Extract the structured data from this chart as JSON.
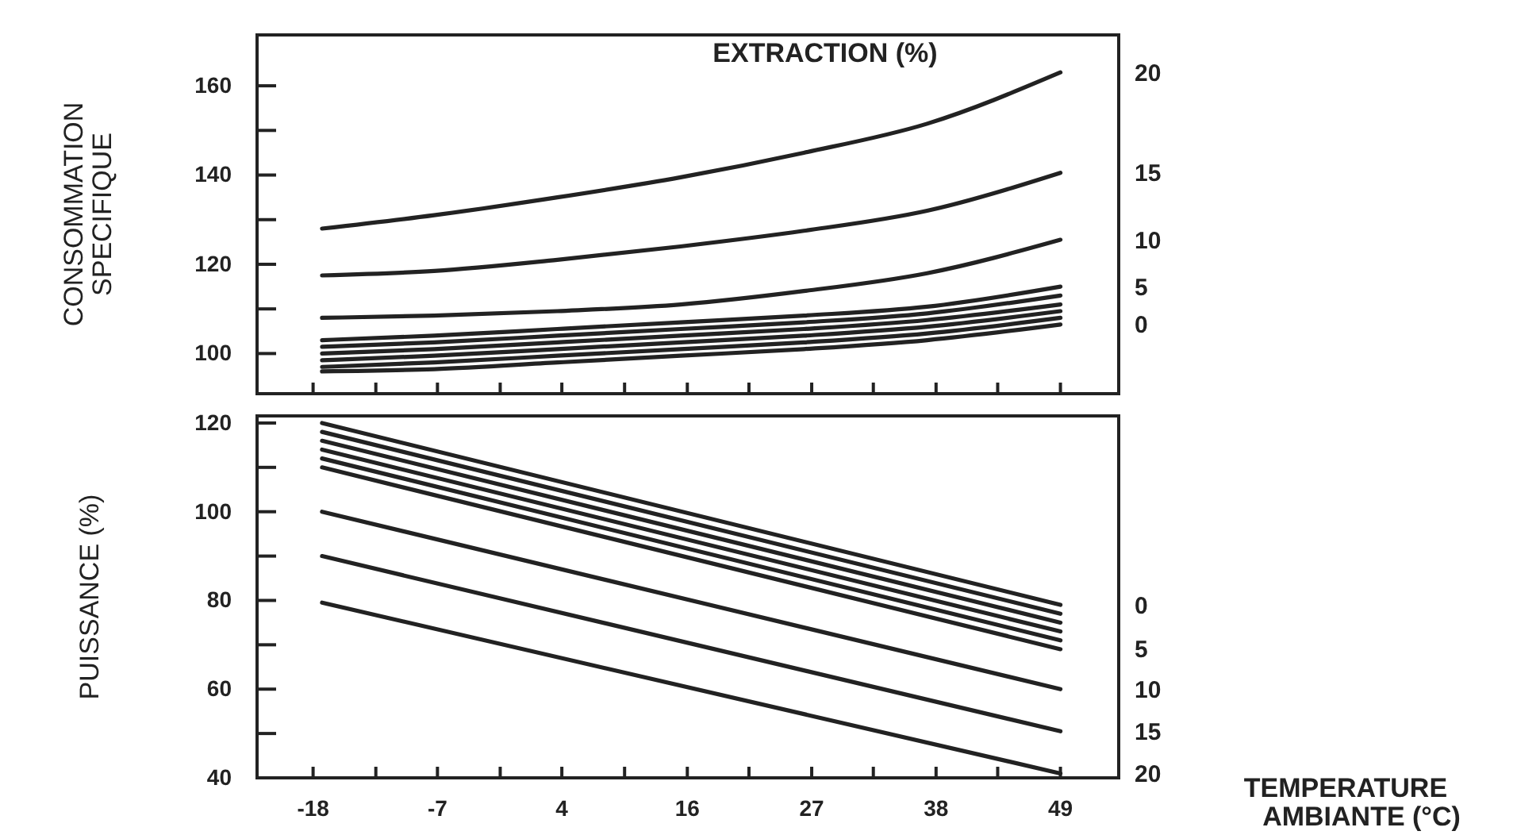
{
  "chart_data": [
    {
      "type": "line",
      "ylabel": "CONSOMMATION SPECIFIQUE",
      "annotations": [
        "EXTRACTION (%)"
      ],
      "xlim": [
        -22.8,
        54.1
      ],
      "ylim": [
        91,
        171.4
      ],
      "xticks": [
        {
          "value": -17.8,
          "label": null
        },
        {
          "value": -12.2,
          "label": null
        },
        {
          "value": -6.7,
          "label": null
        },
        {
          "value": -1.1,
          "label": null
        },
        {
          "value": 4.4,
          "label": null
        },
        {
          "value": 10,
          "label": null
        },
        {
          "value": 15.6,
          "label": null
        },
        {
          "value": 21.1,
          "label": null
        },
        {
          "value": 26.7,
          "label": null
        },
        {
          "value": 32.2,
          "label": null
        },
        {
          "value": 37.8,
          "label": null
        },
        {
          "value": 43.3,
          "label": null
        },
        {
          "value": 48.9,
          "label": null
        }
      ],
      "yticks": [
        100,
        {
          "value": 110,
          "label": null
        },
        120,
        {
          "value": 130,
          "label": null
        },
        140,
        {
          "value": 150,
          "label": null
        },
        160
      ],
      "tick_labels": "y",
      "grid": false,
      "marker": "none",
      "line_style": "solid",
      "x": [
        -17,
        -7,
        4,
        15,
        26,
        37,
        48.9
      ],
      "series": [
        {
          "name": "20",
          "color": "#222222",
          "values": [
            128,
            131,
            135,
            139.5,
            145,
            151.5,
            163
          ]
        },
        {
          "name": "15",
          "color": "#222222",
          "values": [
            117.5,
            118.5,
            121,
            124,
            127.5,
            132,
            140.5
          ]
        },
        {
          "name": "10",
          "color": "#222222",
          "values": [
            108,
            108.5,
            109.5,
            111,
            114,
            118,
            125.5
          ]
        },
        {
          "name": "5",
          "color": "#222222",
          "values": [
            103,
            104,
            105.5,
            107,
            108.5,
            110.5,
            115
          ]
        },
        {
          "color": "#222222",
          "values": [
            101.5,
            102.5,
            104,
            105.5,
            107,
            109,
            113
          ]
        },
        {
          "color": "#222222",
          "values": [
            100,
            101,
            102.5,
            104,
            105.5,
            107.5,
            111
          ]
        },
        {
          "color": "#222222",
          "values": [
            98.5,
            99.5,
            101,
            102.5,
            104,
            106,
            109.5
          ]
        },
        {
          "color": "#222222",
          "values": [
            97,
            98,
            99.5,
            101,
            102.5,
            104.5,
            108
          ]
        },
        {
          "name": "0",
          "color": "#222222",
          "values": [
            96,
            96.5,
            98,
            99.5,
            101,
            103,
            106.5
          ]
        }
      ]
    },
    {
      "type": "line",
      "ylabel": "PUISSANCE (%)",
      "xlabel": "TEMPERATURE AMBIANTE (°C)",
      "xlim": [
        -22.8,
        54.1
      ],
      "ylim": [
        40,
        121.6
      ],
      "xticks": [
        {
          "value": -17.8,
          "label": "-18"
        },
        {
          "value": -12.2,
          "label": null
        },
        {
          "value": -6.7,
          "label": "-7"
        },
        {
          "value": -1.1,
          "label": null
        },
        {
          "value": 4.4,
          "label": "4"
        },
        {
          "value": 10,
          "label": null
        },
        {
          "value": 15.6,
          "label": "16"
        },
        {
          "value": 21.1,
          "label": null
        },
        {
          "value": 26.7,
          "label": "27"
        },
        {
          "value": 32.2,
          "label": null
        },
        {
          "value": 37.8,
          "label": "38"
        },
        {
          "value": 43.3,
          "label": null
        },
        {
          "value": 48.9,
          "label": "49"
        }
      ],
      "yticks": [
        40,
        {
          "value": 50,
          "label": null
        },
        60,
        {
          "value": 70,
          "label": null
        },
        80,
        {
          "value": 90,
          "label": null
        },
        100,
        {
          "value": 110,
          "label": null
        },
        120
      ],
      "grid": false,
      "marker": "none",
      "line_style": "solid",
      "x": [
        -17,
        48.9
      ],
      "series": [
        {
          "name": "0",
          "color": "#222222",
          "values": [
            120,
            79
          ]
        },
        {
          "color": "#222222",
          "values": [
            118,
            77
          ]
        },
        {
          "color": "#222222",
          "values": [
            116,
            75
          ]
        },
        {
          "color": "#222222",
          "values": [
            114,
            73
          ]
        },
        {
          "color": "#222222",
          "values": [
            112,
            71
          ]
        },
        {
          "name": "5",
          "color": "#222222",
          "values": [
            110,
            69
          ]
        },
        {
          "name": "10",
          "color": "#222222",
          "values": [
            100,
            60
          ]
        },
        {
          "name": "15",
          "color": "#222222",
          "values": [
            90,
            50.5
          ]
        },
        {
          "name": "20",
          "color": "#222222",
          "values": [
            79.5,
            41
          ]
        }
      ]
    }
  ]
}
